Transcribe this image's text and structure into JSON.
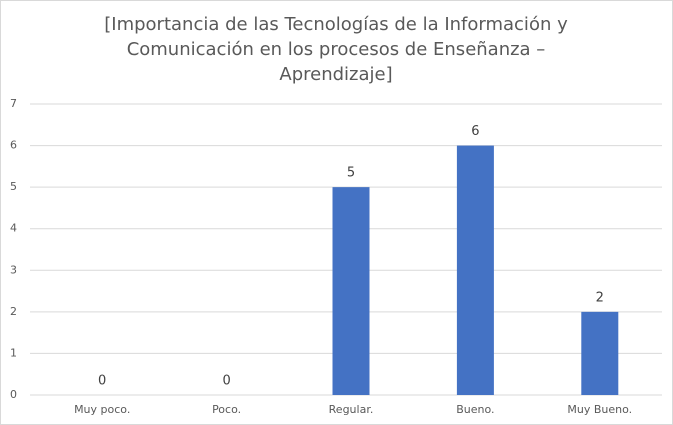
{
  "chart_data": {
    "type": "bar",
    "title": "[Importancia de las Tecnologías de la Información y Comunicación en los procesos de Enseñanza – Aprendizaje]",
    "categories": [
      "Muy poco.",
      "Poco.",
      "Regular.",
      "Bueno.",
      "Muy Bueno."
    ],
    "values": [
      0,
      0,
      5,
      6,
      2
    ],
    "color": "#4472c4",
    "ylim": [
      0,
      7
    ],
    "yticks": [
      0,
      1,
      2,
      3,
      4,
      5,
      6,
      7
    ],
    "grid": true
  }
}
